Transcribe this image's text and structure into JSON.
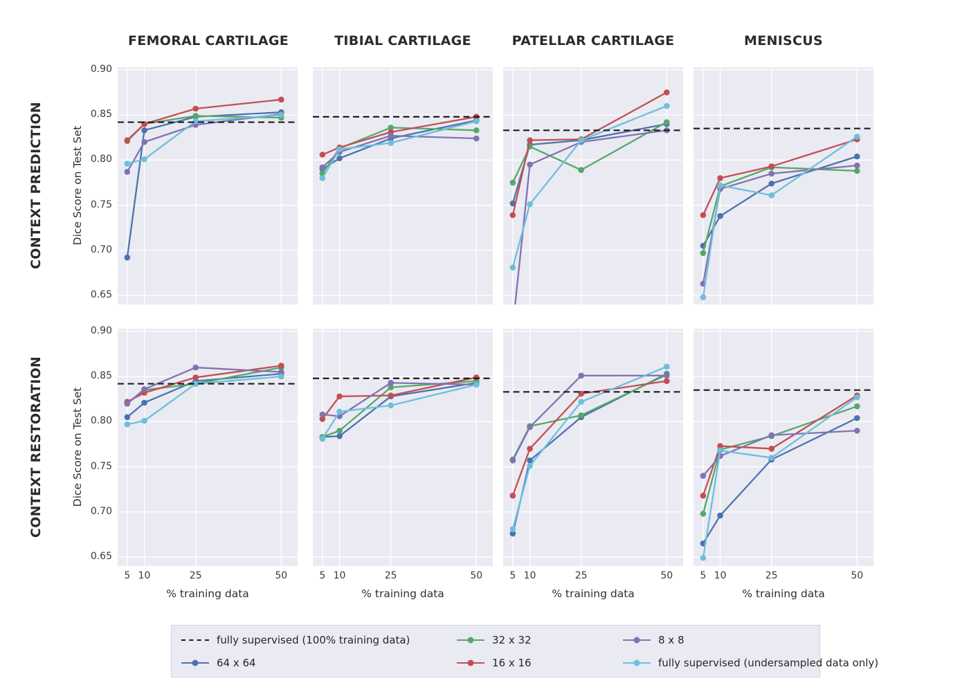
{
  "legend": {
    "entries": [
      {
        "label": "fully supervised (100% training data)",
        "color": "#1a1a1a",
        "dashed": true
      },
      {
        "label": "32 x 32",
        "color": "#55a868",
        "dashed": false
      },
      {
        "label": "8 x 8",
        "color": "#8172b3",
        "dashed": false
      },
      {
        "label": "64 x 64",
        "color": "#4c72b0",
        "dashed": false
      },
      {
        "label": "16 x 16",
        "color": "#c44e52",
        "dashed": false
      },
      {
        "label": "fully supervised (undersampled data only)",
        "color": "#6dbfda",
        "dashed": false
      }
    ]
  },
  "chart_data": {
    "type": "line",
    "x": [
      5,
      10,
      25,
      50
    ],
    "xticks": [
      5,
      10,
      25,
      50
    ],
    "yticks": [
      0.65,
      0.7,
      0.75,
      0.8,
      0.85,
      0.9
    ],
    "xlim": [
      2.2,
      54.8
    ],
    "ylim": [
      0.64,
      0.903
    ],
    "grid": true,
    "xlabel": "% training data",
    "ylabel": "Dice Score on Test Set",
    "rows": [
      "CONTEXT PREDICTION",
      "CONTEXT RESTORATION"
    ],
    "cols": [
      "FEMORAL CARTILAGE",
      "TIBIAL CARTILAGE",
      "PATELLAR CARTILAGE",
      "MENISCUS"
    ],
    "baseline_legend_label": "fully supervised (100% training data)",
    "panels": [
      {
        "row": "CONTEXT PREDICTION",
        "col": "FEMORAL CARTILAGE",
        "baseline": 0.842,
        "series": [
          {
            "name": "64 x 64",
            "values": [
              0.692,
              0.833,
              0.848,
              0.853
            ]
          },
          {
            "name": "32 x 32",
            "values": [
              0.821,
              0.84,
              0.849,
              0.847
            ]
          },
          {
            "name": "16 x 16",
            "values": [
              0.822,
              0.84,
              0.857,
              0.867
            ]
          },
          {
            "name": "8 x 8",
            "values": [
              0.787,
              0.82,
              0.839,
              0.851
            ]
          },
          {
            "name": "fully supervised (undersampled data only)",
            "values": [
              0.796,
              0.801,
              0.843,
              0.85
            ]
          }
        ]
      },
      {
        "row": "CONTEXT PREDICTION",
        "col": "TIBIAL CARTILAGE",
        "baseline": 0.848,
        "series": [
          {
            "name": "64 x 64",
            "values": [
              0.79,
              0.802,
              0.824,
              0.844
            ]
          },
          {
            "name": "32 x 32",
            "values": [
              0.785,
              0.813,
              0.836,
              0.833
            ]
          },
          {
            "name": "16 x 16",
            "values": [
              0.806,
              0.814,
              0.831,
              0.848
            ]
          },
          {
            "name": "8 x 8",
            "values": [
              0.792,
              0.809,
              0.827,
              0.824
            ]
          },
          {
            "name": "fully supervised (undersampled data only)",
            "values": [
              0.78,
              0.812,
              0.819,
              0.843
            ]
          }
        ]
      },
      {
        "row": "CONTEXT PREDICTION",
        "col": "PATELLAR CARTILAGE",
        "baseline": 0.833,
        "series": [
          {
            "name": "64 x 64",
            "values": [
              0.752,
              0.817,
              0.822,
              0.84
            ]
          },
          {
            "name": "32 x 32",
            "values": [
              0.775,
              0.815,
              0.789,
              0.842
            ]
          },
          {
            "name": "16 x 16",
            "values": [
              0.739,
              0.822,
              0.823,
              0.875
            ]
          },
          {
            "name": "8 x 8",
            "values": [
              0.615,
              0.795,
              0.82,
              0.833
            ]
          },
          {
            "name": "fully supervised (undersampled data only)",
            "values": [
              0.681,
              0.751,
              0.822,
              0.86
            ]
          }
        ]
      },
      {
        "row": "CONTEXT PREDICTION",
        "col": "MENISCUS",
        "baseline": 0.835,
        "series": [
          {
            "name": "64 x 64",
            "values": [
              0.705,
              0.738,
              0.774,
              0.804
            ]
          },
          {
            "name": "32 x 32",
            "values": [
              0.697,
              0.771,
              0.792,
              0.788
            ]
          },
          {
            "name": "16 x 16",
            "values": [
              0.739,
              0.78,
              0.793,
              0.823
            ]
          },
          {
            "name": "8 x 8",
            "values": [
              0.663,
              0.768,
              0.785,
              0.794
            ]
          },
          {
            "name": "fully supervised (undersampled data only)",
            "values": [
              0.648,
              0.772,
              0.761,
              0.826
            ]
          }
        ]
      },
      {
        "row": "CONTEXT RESTORATION",
        "col": "FEMORAL CARTILAGE",
        "baseline": 0.842,
        "series": [
          {
            "name": "64 x 64",
            "values": [
              0.805,
              0.821,
              0.845,
              0.853
            ]
          },
          {
            "name": "32 x 32",
            "values": [
              0.82,
              0.835,
              0.842,
              0.86
            ]
          },
          {
            "name": "16 x 16",
            "values": [
              0.822,
              0.832,
              0.849,
              0.862
            ]
          },
          {
            "name": "8 x 8",
            "values": [
              0.82,
              0.836,
              0.86,
              0.855
            ]
          },
          {
            "name": "fully supervised (undersampled data only)",
            "values": [
              0.797,
              0.801,
              0.842,
              0.85
            ]
          }
        ]
      },
      {
        "row": "CONTEXT RESTORATION",
        "col": "TIBIAL CARTILAGE",
        "baseline": 0.848,
        "series": [
          {
            "name": "64 x 64",
            "values": [
              0.783,
              0.784,
              0.828,
              0.843
            ]
          },
          {
            "name": "32 x 32",
            "values": [
              0.783,
              0.79,
              0.838,
              0.845
            ]
          },
          {
            "name": "16 x 16",
            "values": [
              0.803,
              0.828,
              0.829,
              0.849
            ]
          },
          {
            "name": "8 x 8",
            "values": [
              0.808,
              0.806,
              0.843,
              0.841
            ]
          },
          {
            "name": "fully supervised (undersampled data only)",
            "values": [
              0.781,
              0.811,
              0.818,
              0.841
            ]
          }
        ]
      },
      {
        "row": "CONTEXT RESTORATION",
        "col": "PATELLAR CARTILAGE",
        "baseline": 0.833,
        "series": [
          {
            "name": "64 x 64",
            "values": [
              0.676,
              0.757,
              0.805,
              0.853
            ]
          },
          {
            "name": "32 x 32",
            "values": [
              0.758,
              0.795,
              0.807,
              0.852
            ]
          },
          {
            "name": "16 x 16",
            "values": [
              0.718,
              0.77,
              0.831,
              0.845
            ]
          },
          {
            "name": "8 x 8",
            "values": [
              0.757,
              0.794,
              0.851,
              0.851
            ]
          },
          {
            "name": "fully supervised (undersampled data only)",
            "values": [
              0.681,
              0.751,
              0.822,
              0.861
            ]
          }
        ]
      },
      {
        "row": "CONTEXT RESTORATION",
        "col": "MENISCUS",
        "baseline": 0.835,
        "series": [
          {
            "name": "64 x 64",
            "values": [
              0.665,
              0.696,
              0.758,
              0.804
            ]
          },
          {
            "name": "32 x 32",
            "values": [
              0.698,
              0.769,
              0.784,
              0.817
            ]
          },
          {
            "name": "16 x 16",
            "values": [
              0.718,
              0.773,
              0.77,
              0.829
            ]
          },
          {
            "name": "8 x 8",
            "values": [
              0.74,
              0.762,
              0.785,
              0.79
            ]
          },
          {
            "name": "fully supervised (undersampled data only)",
            "values": [
              0.649,
              0.768,
              0.76,
              0.827
            ]
          }
        ]
      }
    ],
    "style": {
      "plot_bg": "#eaeaf2",
      "grid_color": "#ffffff",
      "baseline_color": "#1a1a1a"
    }
  }
}
